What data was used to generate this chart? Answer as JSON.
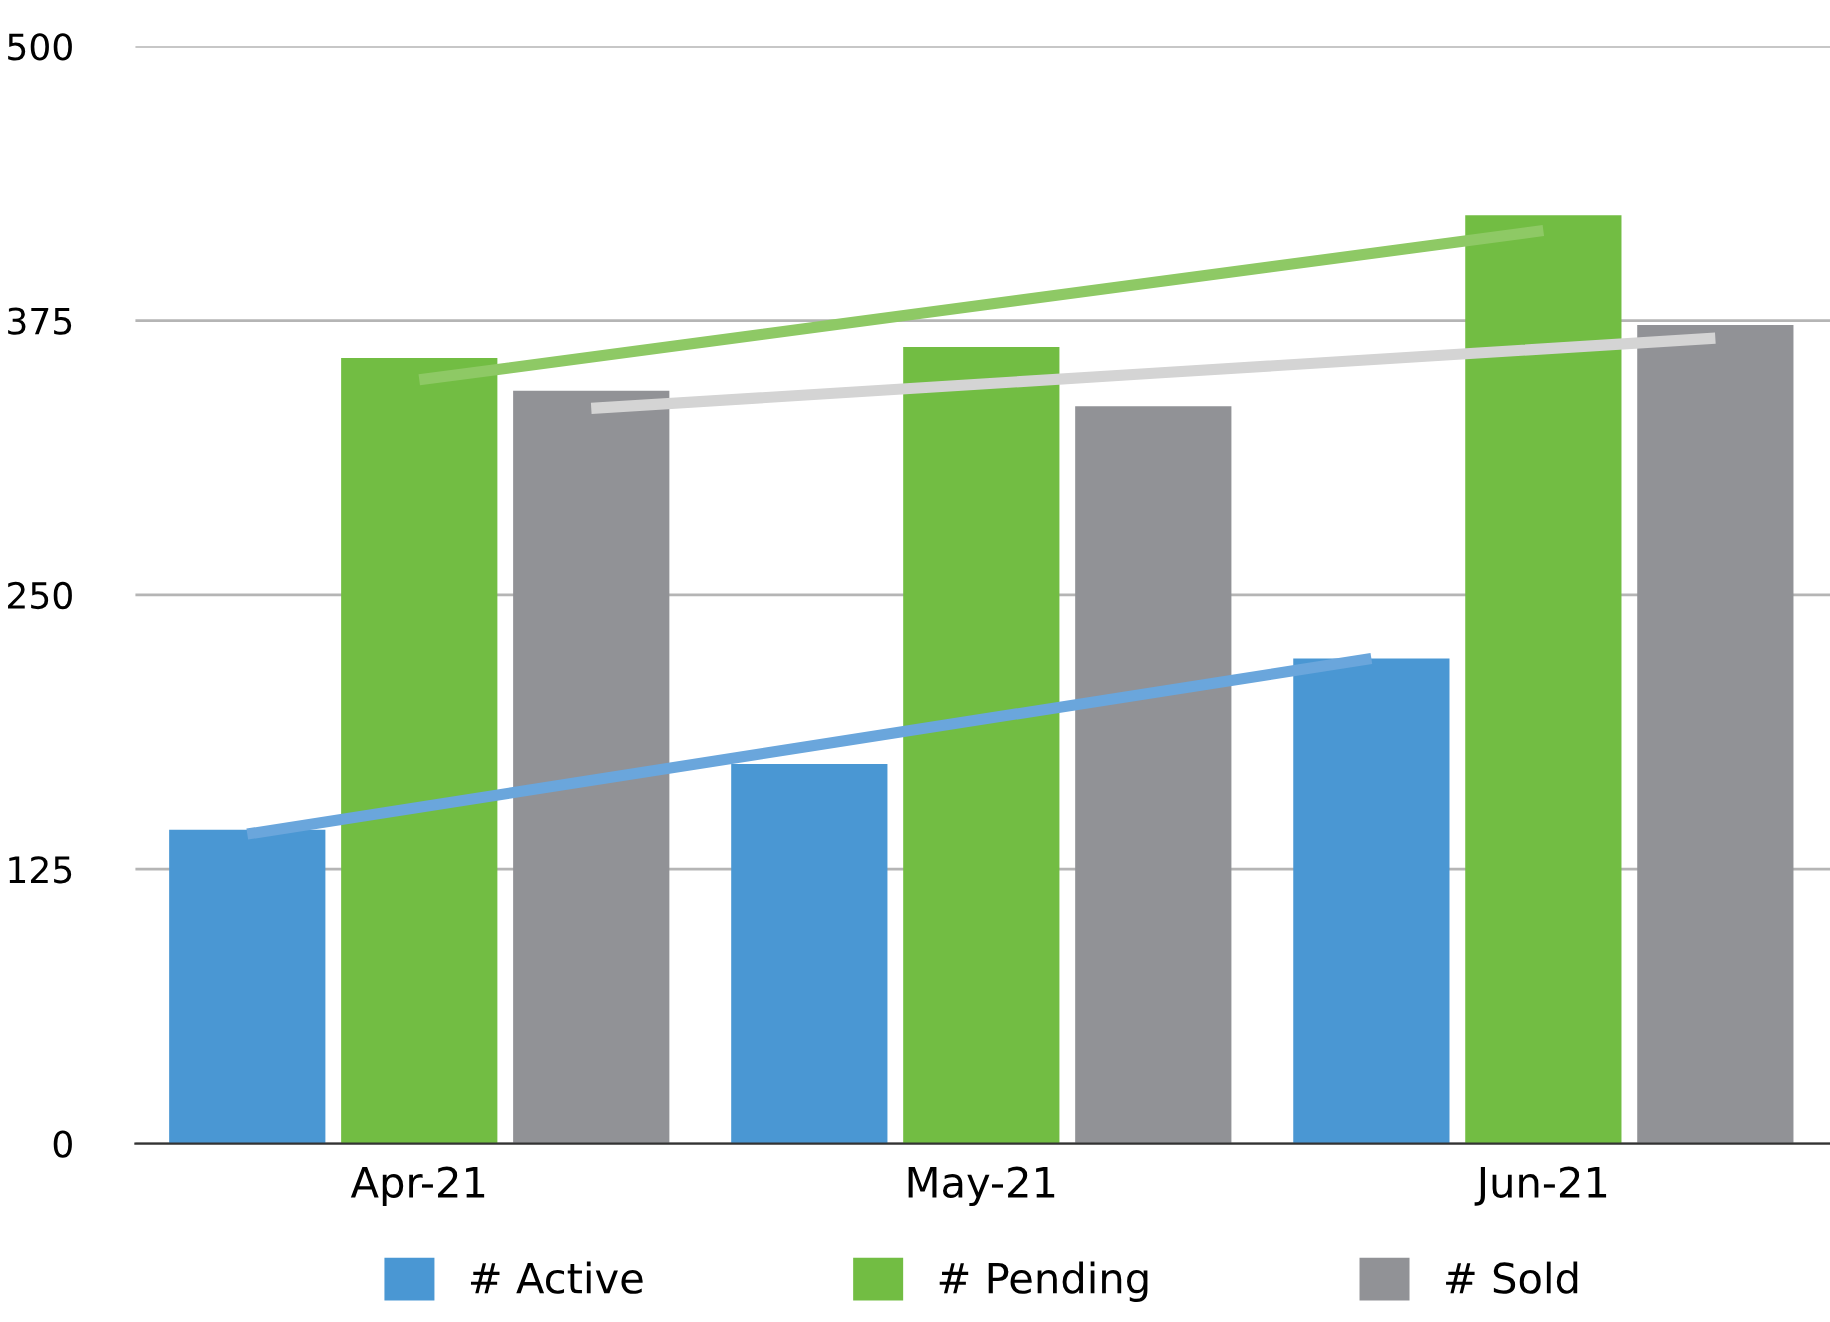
{
  "chart_data": {
    "type": "bar",
    "categories": [
      "Apr-21",
      "May-21",
      "Jun-21"
    ],
    "series": [
      {
        "name": "# Active",
        "color": "#4a97d3",
        "values": [
          143,
          173,
          221
        ]
      },
      {
        "name": "# Pending",
        "color": "#72bd43",
        "values": [
          358,
          363,
          423
        ]
      },
      {
        "name": "# Sold",
        "color": "#919296",
        "values": [
          343,
          336,
          373
        ]
      },
      {
        "type": "line",
        "color": "#6aa6dc",
        "values": [
          141,
          181,
          221
        ]
      },
      {
        "type": "line",
        "color": "#8ec965",
        "values": [
          348,
          382,
          416
        ]
      },
      {
        "type": "line",
        "color": "#d4d4d4",
        "values": [
          335,
          351,
          367
        ]
      }
    ],
    "ylim": [
      0,
      500
    ],
    "yticks": [
      0,
      125,
      250,
      375,
      500
    ],
    "grid": "y",
    "legend": "bottom"
  }
}
